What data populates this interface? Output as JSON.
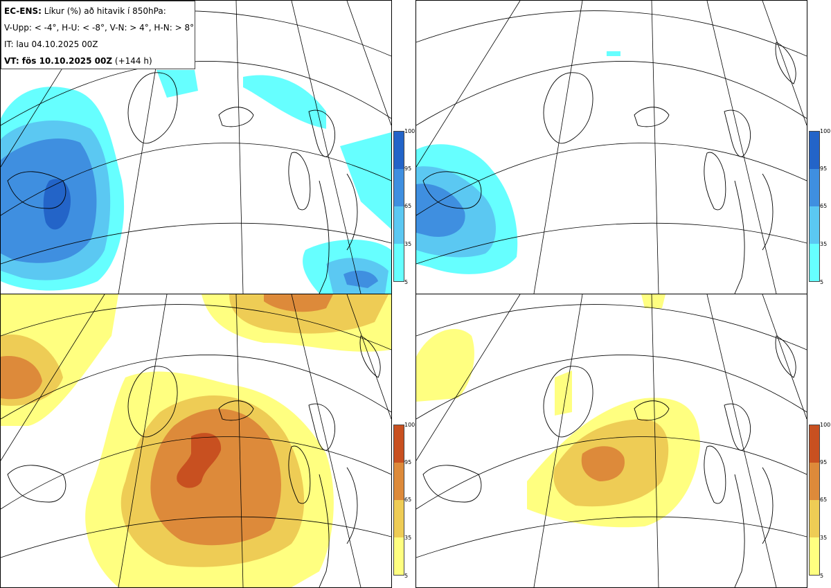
{
  "info": {
    "line1_bold": "EC-ENS:",
    "line1_rest": " Líkur (%) að hitavik í 850hPa:",
    "line2": "V-Upp: < -4°, H-U: < -8°, V-N: > 4°, H-N: > 8°",
    "line3": "IT: lau 04.10.2025 00Z",
    "line4_bold": "VT: fös 10.10.2025 00Z",
    "line4_rest": " (+144 h)"
  },
  "legend_ticks": [
    "100",
    "95",
    "65",
    "35",
    "5"
  ],
  "colors": {
    "cold_5_35": "#66ffff",
    "cold_35_65": "#5bc8f2",
    "cold_65_95": "#3f8fe0",
    "cold_95_100": "#2364c8",
    "warm_5_35": "#ffff80",
    "warm_35_65": "#eecc55",
    "warm_65_95": "#dd8a3a",
    "warm_95_100": "#c85020"
  }
}
